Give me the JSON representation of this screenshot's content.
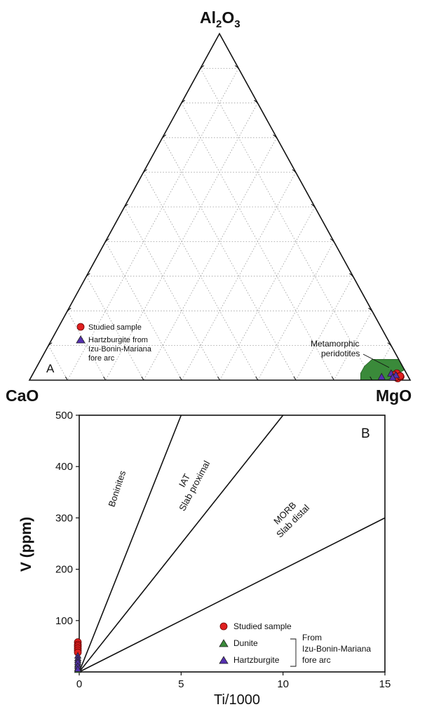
{
  "chart_data": [
    {
      "type": "ternary",
      "panel_label": "A",
      "vertices": {
        "top": "Al",
        "top_sub1": "2",
        "top_mid": "O",
        "top_sub2": "3",
        "left": "CaO",
        "right": "MgO"
      },
      "grid_step": 10,
      "fields": [
        {
          "name": "Metamorphic peridotites",
          "color": "#3a8a3a",
          "polygon": [
            [
              0,
              94,
              6
            ],
            [
              0,
              87,
              13
            ],
            [
              2,
              86,
              12
            ],
            [
              4,
              86,
              10
            ],
            [
              6,
              87,
              7
            ],
            [
              6,
              94,
              0
            ],
            [
              3,
              97,
              0
            ]
          ]
        }
      ],
      "series": [
        {
          "name": "Studied sample",
          "marker": "circle",
          "color": "#e02020",
          "points": [
            [
              1,
              96,
              3
            ],
            [
              2,
              95.5,
              2.5
            ],
            [
              0.5,
              96.5,
              3
            ],
            [
              1.5,
              95,
              3.5
            ],
            [
              1,
              97,
              2
            ],
            [
              0.8,
              95.8,
              3.4
            ],
            [
              1.2,
              96.8,
              2
            ]
          ]
        },
        {
          "name": "Hartzburgite from Izu-Bonin-Mariana fore arc",
          "marker": "triangle",
          "color": "#5530b0",
          "points": [
            [
              1,
              92,
              7
            ],
            [
              2,
              94,
              4
            ],
            [
              1.5,
              95.5,
              3
            ],
            [
              0.8,
              95,
              4.2
            ]
          ]
        }
      ],
      "legend": [
        {
          "marker": "circle",
          "color": "#e02020",
          "lines": [
            "Studied sample"
          ]
        },
        {
          "marker": "triangle",
          "color": "#5530b0",
          "lines": [
            "Hartzburgite from",
            "Izu-Bonin-Mariana",
            "fore arc"
          ]
        }
      ],
      "field_label": [
        "Metamorphic",
        "peridotites"
      ]
    },
    {
      "type": "scatter",
      "panel_label": "B",
      "xlabel": "Ti/1000",
      "ylabel": "V (ppm)",
      "xlim": [
        0,
        15
      ],
      "ylim": [
        0,
        500
      ],
      "xticks": [
        0,
        5,
        10,
        15
      ],
      "yticks": [
        100,
        200,
        300,
        400,
        500
      ],
      "x_tick_labels": [
        "0",
        "5",
        "10",
        "15"
      ],
      "y_tick_labels": [
        "100",
        "200",
        "300",
        "400",
        "500"
      ],
      "boundary_lines": [
        {
          "from": [
            0,
            0
          ],
          "to": [
            5,
            500
          ]
        },
        {
          "from": [
            0,
            0
          ],
          "to": [
            10,
            500
          ]
        },
        {
          "from": [
            0,
            0
          ],
          "to": [
            15,
            300
          ]
        }
      ],
      "field_labels": [
        {
          "lines": [
            "Boninites"
          ],
          "x": 2.0,
          "y": 355,
          "angle": -72
        },
        {
          "lines": [
            "IAT",
            "Slab proximal"
          ],
          "x": 5.3,
          "y": 370,
          "angle": -62
        },
        {
          "lines": [
            "MORB",
            "Slab distal"
          ],
          "x": 10.2,
          "y": 305,
          "angle": -45
        }
      ],
      "series": [
        {
          "name": "Studied sample",
          "marker": "circle",
          "color": "#e02020",
          "points": [
            [
              0,
              58
            ],
            [
              0,
              53
            ],
            [
              0,
              50
            ],
            [
              0,
              46
            ],
            [
              0,
              42
            ],
            [
              0,
              38
            ]
          ]
        },
        {
          "name": "Dunite",
          "marker": "triangle",
          "color": "#3a8a3a",
          "points": [
            [
              0,
              15
            ],
            [
              0,
              8
            ],
            [
              0,
              4
            ]
          ]
        },
        {
          "name": "Hartzburgite",
          "marker": "triangle",
          "color": "#5530b0",
          "points": [
            [
              0,
              32
            ],
            [
              0,
              27
            ],
            [
              0,
              23
            ],
            [
              0,
              19
            ],
            [
              0,
              12
            ],
            [
              0,
              6
            ]
          ]
        }
      ],
      "legend": [
        {
          "marker": "circle",
          "color": "#e02020",
          "label": "Studied sample"
        },
        {
          "marker": "triangle",
          "color": "#3a8a3a",
          "label": "Dunite"
        },
        {
          "marker": "triangle",
          "color": "#5530b0",
          "label": "Hartzburgite"
        }
      ],
      "legend_group_label": [
        "From",
        "Izu-Bonin-Mariana",
        "fore arc"
      ]
    }
  ]
}
